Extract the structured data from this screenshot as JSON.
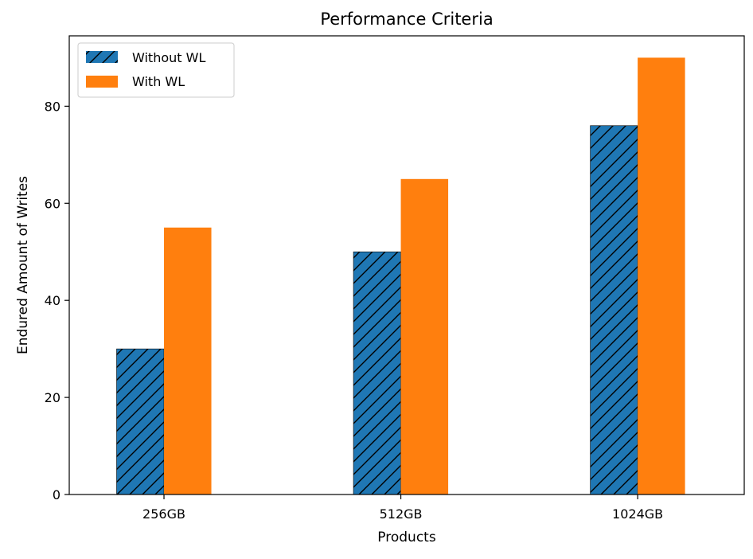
{
  "chart_data": {
    "type": "bar",
    "title": "Performance Criteria",
    "xlabel": "Products",
    "ylabel": "Endured Amount of Writes",
    "categories": [
      "256GB",
      "512GB",
      "1024GB"
    ],
    "series": [
      {
        "name": "Without WL",
        "values": [
          30,
          50,
          76
        ],
        "color": "#1f77b4",
        "hatch": "diagonal"
      },
      {
        "name": "With WL",
        "values": [
          55,
          65,
          90
        ],
        "color": "#ff7f0e",
        "hatch": "none"
      }
    ],
    "ylim": [
      0,
      94.5
    ],
    "yticks": [
      0,
      20,
      40,
      60,
      80
    ],
    "grid": false,
    "legend_position": "top-left"
  }
}
